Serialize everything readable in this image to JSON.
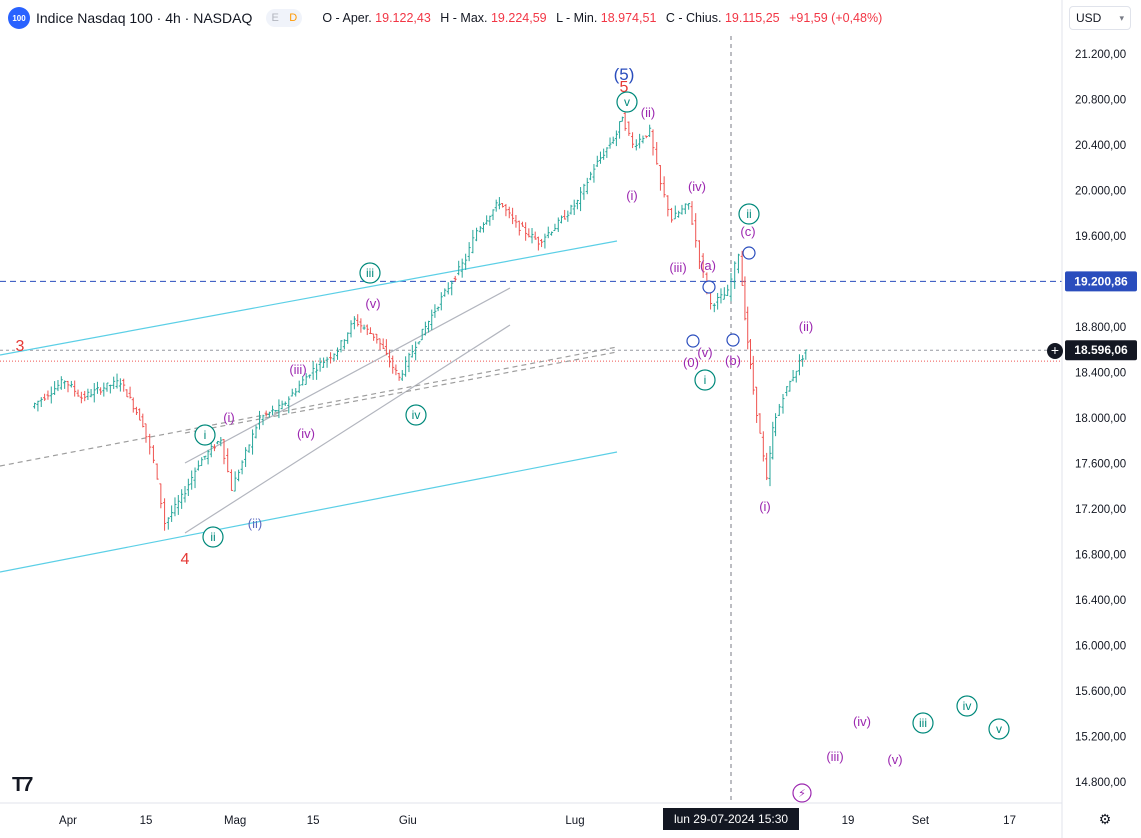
{
  "header": {
    "logo_text": "100",
    "symbol": "Indice Nasdaq 100 · 4h · NASDAQ",
    "pill_e": "E",
    "pill_d": "D",
    "open_label": "O - Aper.",
    "open": "19.122,43",
    "high_label": "H - Max.",
    "high": "19.224,59",
    "low_label": "L - Min.",
    "low": "18.974,51",
    "close_label": "C - Chius.",
    "close": "19.115,25",
    "change": "+91,59 (+0,48%)"
  },
  "currency": "USD",
  "colors": {
    "up": "#26a69a",
    "down": "#ef5350",
    "channel": "#5bcfe6",
    "purple_label": "#9c27b0",
    "teal_label": "#00897b",
    "blue_label": "#5c6bc0",
    "red_label": "#e53935",
    "dashed_blue": "#2a4dbd"
  },
  "chart_data": {
    "type": "ohlc",
    "title": "",
    "y_axis": {
      "range": [
        14600,
        21400
      ],
      "ticks": [
        "21.200,00",
        "20.800,00",
        "20.400,00",
        "20.000,00",
        "19.600,00",
        "19.200,00",
        "18.800,00",
        "18.400,00",
        "18.000,00",
        "17.600,00",
        "17.200,00",
        "16.800,00",
        "16.400,00",
        "16.000,00",
        "15.600,00",
        "15.200,00",
        "14.800,00"
      ],
      "price_badges": [
        {
          "label": "19.200,86",
          "value": 19200.86,
          "style": "blue"
        },
        {
          "label": "18.596,06",
          "value": 18596.06,
          "style": "dark"
        }
      ]
    },
    "x_axis": {
      "ticks": [
        "Apr",
        "15",
        "Mag",
        "15",
        "Giu",
        "Lug",
        "19",
        "Set",
        "17"
      ],
      "crosshair_label": "lun 29-07-2024   15:30"
    },
    "price_path": [
      [
        "2024-03-26",
        18100
      ],
      [
        "2024-04-01",
        18330
      ],
      [
        "2024-04-04",
        18180
      ],
      [
        "2024-04-08",
        18270
      ],
      [
        "2024-04-11",
        18320
      ],
      [
        "2024-04-15",
        17950
      ],
      [
        "2024-04-17",
        17620
      ],
      [
        "2024-04-19",
        17080
      ],
      [
        "2024-04-22",
        17300
      ],
      [
        "2024-04-25",
        17600
      ],
      [
        "2024-04-29",
        17820
      ],
      [
        "2024-05-01",
        17380
      ],
      [
        "2024-05-06",
        18000
      ],
      [
        "2024-05-10",
        18100
      ],
      [
        "2024-05-15",
        18400
      ],
      [
        "2024-05-20",
        18600
      ],
      [
        "2024-05-23",
        18860
      ],
      [
        "2024-05-27",
        18700
      ],
      [
        "2024-05-31",
        18350
      ],
      [
        "2024-06-03",
        18650
      ],
      [
        "2024-06-07",
        19000
      ],
      [
        "2024-06-12",
        19400
      ],
      [
        "2024-06-14",
        19650
      ],
      [
        "2024-06-18",
        19900
      ],
      [
        "2024-06-21",
        19700
      ],
      [
        "2024-06-25",
        19550
      ],
      [
        "2024-06-28",
        19680
      ],
      [
        "2024-07-02",
        19900
      ],
      [
        "2024-07-05",
        20200
      ],
      [
        "2024-07-09",
        20500
      ],
      [
        "2024-07-10",
        20660
      ],
      [
        "2024-07-12",
        20400
      ],
      [
        "2024-07-15",
        20520
      ],
      [
        "2024-07-17",
        20050
      ],
      [
        "2024-07-19",
        19750
      ],
      [
        "2024-07-22",
        19880
      ],
      [
        "2024-07-24",
        19400
      ],
      [
        "2024-07-26",
        19000
      ],
      [
        "2024-07-29",
        19100
      ],
      [
        "2024-07-31",
        19450
      ],
      [
        "2024-08-01",
        18900
      ],
      [
        "2024-08-02",
        18450
      ],
      [
        "2024-08-05",
        17450
      ],
      [
        "2024-08-06",
        17900
      ],
      [
        "2024-08-08",
        18200
      ],
      [
        "2024-08-12",
        18600
      ]
    ],
    "horizontal_levels": [
      {
        "value": 19200.86,
        "style": "blue-dashed"
      },
      {
        "value": 18596.06,
        "style": "grey-dashed"
      }
    ],
    "wave_labels": [
      "3",
      "4",
      "5",
      "(5)",
      "i",
      "ii",
      "iii",
      "iv",
      "v",
      "(i)",
      "(ii)",
      "(iii)",
      "(iv)",
      "(v)",
      "(0)",
      "(a)",
      "(b)",
      "(c)"
    ],
    "projection_labels": [
      "(iii)",
      "(iv)",
      "(v)",
      "iii",
      "iv",
      "v"
    ]
  },
  "icons": {
    "settings": "gear-icon",
    "add_level": "plus-circle-icon",
    "logo": "tradingview-logo-icon",
    "alert": "lightning-icon"
  }
}
